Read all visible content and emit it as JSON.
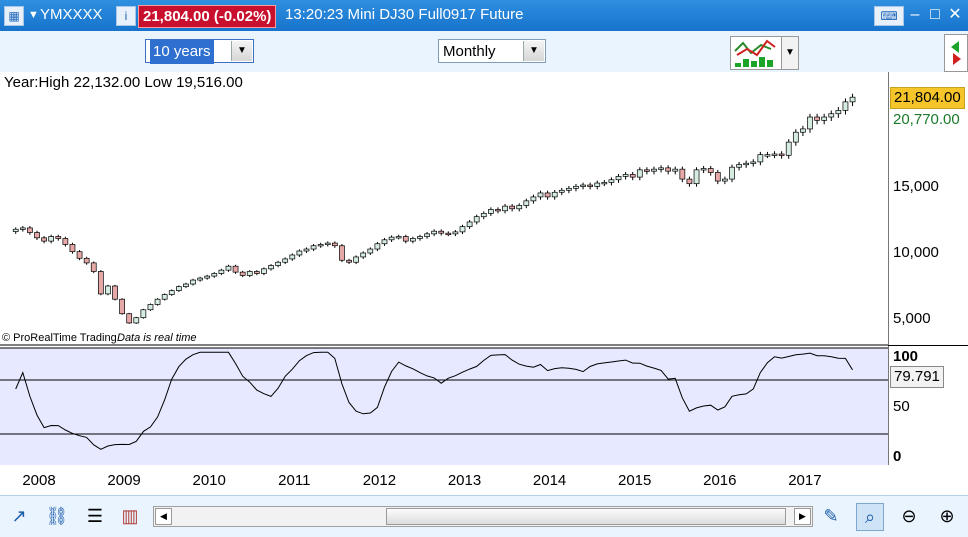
{
  "titlebar": {
    "ticker": "YMXXXX",
    "price_badge": "21,804.00 (-0.02%)",
    "description": "13:20:23 Mini DJ30 Full0917 Future"
  },
  "toolbar": {
    "period_select": "10 years",
    "interval_select": "Monthly"
  },
  "chart_info": {
    "range_text": "Year:High 22,132.00 Low 19,516.00",
    "copyright": "© ProRealTime Trading",
    "realtime_note": "Data is real time"
  },
  "price_tags": {
    "last": "21,804.00",
    "level": "20,770.00"
  },
  "indicator": {
    "current_value": "79.791"
  },
  "colors": {
    "up_candle": "#d5ece0",
    "down_candle": "#e7a8a8",
    "grid_line": "#000000",
    "indicator_fill": "#e6e9ff",
    "indicator_line": "#000000",
    "title_bar": "#1773cc",
    "price_badge_bg": "#c8102e",
    "last_tag_bg": "#f6c52a",
    "level_tag_text": "#1a7a2a"
  },
  "chart_data": [
    {
      "type": "candlestick",
      "interval": "monthly",
      "x_tick_labels": [
        "2008",
        "2009",
        "2010",
        "2011",
        "2012",
        "2013",
        "2014",
        "2015",
        "2016",
        "2017"
      ],
      "y_tick_labels": [
        "5,000",
        "10,000",
        "15,000"
      ],
      "ylim": [
        3000,
        23000
      ],
      "monthly_close": [
        {
          "date": "2007-10",
          "close": 11800
        },
        {
          "date": "2007-11",
          "close": 11900
        },
        {
          "date": "2007-12",
          "close": 11550
        },
        {
          "date": "2008-01",
          "close": 11150
        },
        {
          "date": "2008-02",
          "close": 10900
        },
        {
          "date": "2008-03",
          "close": 11250
        },
        {
          "date": "2008-04",
          "close": 11100
        },
        {
          "date": "2008-05",
          "close": 10650
        },
        {
          "date": "2008-06",
          "close": 10100
        },
        {
          "date": "2008-07",
          "close": 9600
        },
        {
          "date": "2008-08",
          "close": 9250
        },
        {
          "date": "2008-09",
          "close": 8600
        },
        {
          "date": "2008-10",
          "close": 6900
        },
        {
          "date": "2008-11",
          "close": 7500
        },
        {
          "date": "2008-12",
          "close": 6500
        },
        {
          "date": "2009-01",
          "close": 5400
        },
        {
          "date": "2009-02",
          "close": 4700
        },
        {
          "date": "2009-03",
          "close": 5100
        },
        {
          "date": "2009-04",
          "close": 5700
        },
        {
          "date": "2009-05",
          "close": 6100
        },
        {
          "date": "2009-06",
          "close": 6500
        },
        {
          "date": "2009-07",
          "close": 6850
        },
        {
          "date": "2009-08",
          "close": 7150
        },
        {
          "date": "2009-09",
          "close": 7450
        },
        {
          "date": "2009-10",
          "close": 7650
        },
        {
          "date": "2009-11",
          "close": 7950
        },
        {
          "date": "2009-12",
          "close": 8100
        },
        {
          "date": "2010-01",
          "close": 8250
        },
        {
          "date": "2010-02",
          "close": 8450
        },
        {
          "date": "2010-03",
          "close": 8700
        },
        {
          "date": "2010-04",
          "close": 9000
        },
        {
          "date": "2010-05",
          "close": 8550
        },
        {
          "date": "2010-06",
          "close": 8300
        },
        {
          "date": "2010-07",
          "close": 8600
        },
        {
          "date": "2010-08",
          "close": 8450
        },
        {
          "date": "2010-09",
          "close": 8800
        },
        {
          "date": "2010-10",
          "close": 9050
        },
        {
          "date": "2010-11",
          "close": 9300
        },
        {
          "date": "2010-12",
          "close": 9550
        },
        {
          "date": "2011-01",
          "close": 9850
        },
        {
          "date": "2011-02",
          "close": 10150
        },
        {
          "date": "2011-03",
          "close": 10300
        },
        {
          "date": "2011-04",
          "close": 10550
        },
        {
          "date": "2011-05",
          "close": 10650
        },
        {
          "date": "2011-06",
          "close": 10750
        },
        {
          "date": "2011-07",
          "close": 10550
        },
        {
          "date": "2011-08",
          "close": 9450
        },
        {
          "date": "2011-09",
          "close": 9300
        },
        {
          "date": "2011-10",
          "close": 9700
        },
        {
          "date": "2011-11",
          "close": 10000
        },
        {
          "date": "2011-12",
          "close": 10300
        },
        {
          "date": "2012-01",
          "close": 10700
        },
        {
          "date": "2012-02",
          "close": 11000
        },
        {
          "date": "2012-03",
          "close": 11200
        },
        {
          "date": "2012-04",
          "close": 11250
        },
        {
          "date": "2012-05",
          "close": 10900
        },
        {
          "date": "2012-06",
          "close": 11100
        },
        {
          "date": "2012-07",
          "close": 11250
        },
        {
          "date": "2012-08",
          "close": 11450
        },
        {
          "date": "2012-09",
          "close": 11650
        },
        {
          "date": "2012-10",
          "close": 11500
        },
        {
          "date": "2012-11",
          "close": 11450
        },
        {
          "date": "2012-12",
          "close": 11600
        },
        {
          "date": "2013-01",
          "close": 12000
        },
        {
          "date": "2013-02",
          "close": 12350
        },
        {
          "date": "2013-03",
          "close": 12750
        },
        {
          "date": "2013-04",
          "close": 13000
        },
        {
          "date": "2013-05",
          "close": 13300
        },
        {
          "date": "2013-06",
          "close": 13200
        },
        {
          "date": "2013-07",
          "close": 13550
        },
        {
          "date": "2013-08",
          "close": 13350
        },
        {
          "date": "2013-09",
          "close": 13600
        },
        {
          "date": "2013-10",
          "close": 13950
        },
        {
          "date": "2013-11",
          "close": 14250
        },
        {
          "date": "2013-12",
          "close": 14550
        },
        {
          "date": "2014-01",
          "close": 14250
        },
        {
          "date": "2014-02",
          "close": 14600
        },
        {
          "date": "2014-03",
          "close": 14750
        },
        {
          "date": "2014-04",
          "close": 14900
        },
        {
          "date": "2014-05",
          "close": 15050
        },
        {
          "date": "2014-06",
          "close": 15150
        },
        {
          "date": "2014-07",
          "close": 15050
        },
        {
          "date": "2014-08",
          "close": 15300
        },
        {
          "date": "2014-09",
          "close": 15350
        },
        {
          "date": "2014-10",
          "close": 15550
        },
        {
          "date": "2014-11",
          "close": 15800
        },
        {
          "date": "2014-12",
          "close": 15950
        },
        {
          "date": "2015-01",
          "close": 15750
        },
        {
          "date": "2015-02",
          "close": 16300
        },
        {
          "date": "2015-03",
          "close": 16200
        },
        {
          "date": "2015-04",
          "close": 16350
        },
        {
          "date": "2015-05",
          "close": 16450
        },
        {
          "date": "2015-06",
          "close": 16200
        },
        {
          "date": "2015-07",
          "close": 16350
        },
        {
          "date": "2015-08",
          "close": 15600
        },
        {
          "date": "2015-09",
          "close": 15250
        },
        {
          "date": "2015-10",
          "close": 16300
        },
        {
          "date": "2015-11",
          "close": 16400
        },
        {
          "date": "2015-12",
          "close": 16100
        },
        {
          "date": "2016-01",
          "close": 15450
        },
        {
          "date": "2016-02",
          "close": 15600
        },
        {
          "date": "2016-03",
          "close": 16500
        },
        {
          "date": "2016-04",
          "close": 16700
        },
        {
          "date": "2016-05",
          "close": 16800
        },
        {
          "date": "2016-06",
          "close": 16900
        },
        {
          "date": "2016-07",
          "close": 17450
        },
        {
          "date": "2016-08",
          "close": 17450
        },
        {
          "date": "2016-09",
          "close": 17500
        },
        {
          "date": "2016-10",
          "close": 17400
        },
        {
          "date": "2016-11",
          "close": 18400
        },
        {
          "date": "2016-12",
          "close": 19150
        },
        {
          "date": "2017-01",
          "close": 19400
        },
        {
          "date": "2017-02",
          "close": 20300
        },
        {
          "date": "2017-03",
          "close": 20050
        },
        {
          "date": "2017-04",
          "close": 20300
        },
        {
          "date": "2017-05",
          "close": 20550
        },
        {
          "date": "2017-06",
          "close": 20800
        },
        {
          "date": "2017-07",
          "close": 21450
        },
        {
          "date": "2017-08",
          "close": 21804
        }
      ]
    },
    {
      "type": "line",
      "name": "oscillator",
      "y_tick_labels": [
        "100",
        "50",
        "0"
      ],
      "ylim": [
        0,
        100
      ],
      "reference_lines": [
        80,
        20
      ],
      "current_value": 79.791
    }
  ]
}
